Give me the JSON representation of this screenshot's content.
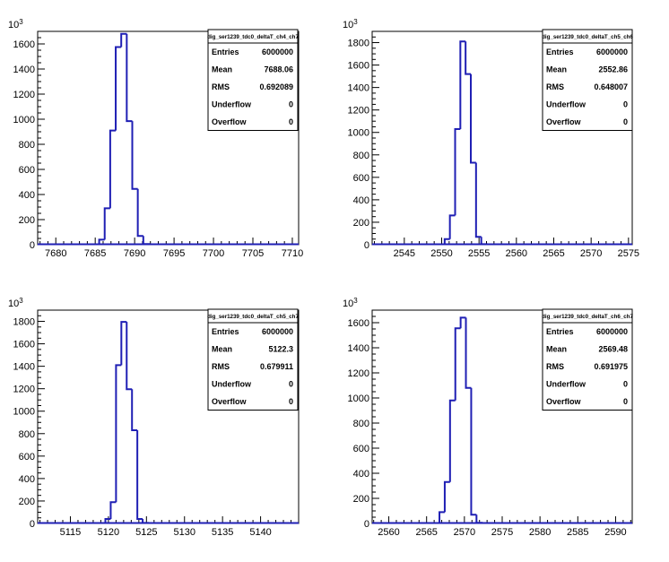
{
  "chart_data": [
    {
      "type": "histogram",
      "stats_title": "dig_ser1239_tdc0_deltaT_ch4_ch7",
      "exponent_label": "10",
      "exponent_power": "3",
      "xlim": [
        7677.7,
        7710.8
      ],
      "ylim": [
        0,
        1700
      ],
      "xticks": [
        7680,
        7685,
        7690,
        7695,
        7700,
        7705,
        7710
      ],
      "yticks": [
        0,
        200,
        400,
        600,
        800,
        1000,
        1200,
        1400,
        1600
      ],
      "bins": [
        {
          "lo": 7685.5,
          "hi": 7686.2,
          "v": 40
        },
        {
          "lo": 7686.2,
          "hi": 7686.9,
          "v": 290
        },
        {
          "lo": 7686.9,
          "hi": 7687.6,
          "v": 910
        },
        {
          "lo": 7687.6,
          "hi": 7688.3,
          "v": 1575
        },
        {
          "lo": 7688.3,
          "hi": 7689.0,
          "v": 1680
        },
        {
          "lo": 7689.0,
          "hi": 7689.7,
          "v": 985
        },
        {
          "lo": 7689.7,
          "hi": 7690.4,
          "v": 445
        },
        {
          "lo": 7690.4,
          "hi": 7691.1,
          "v": 70
        },
        {
          "lo": 7691.1,
          "hi": 7691.8,
          "v": 5
        }
      ],
      "stats": [
        {
          "label": "Entries",
          "value": "6000000"
        },
        {
          "label": "Mean",
          "value": "7688.06"
        },
        {
          "label": "RMS",
          "value": "0.692089"
        },
        {
          "label": "Underflow",
          "value": "0"
        },
        {
          "label": "Overflow",
          "value": "0"
        }
      ]
    },
    {
      "type": "histogram",
      "stats_title": "dig_ser1239_tdc0_deltaT_ch5_ch6",
      "exponent_label": "10",
      "exponent_power": "3",
      "xlim": [
        2540.7,
        2575.5
      ],
      "ylim": [
        0,
        1900
      ],
      "xticks": [
        2545,
        2550,
        2555,
        2560,
        2565,
        2570,
        2575
      ],
      "yticks": [
        0,
        200,
        400,
        600,
        800,
        1000,
        1200,
        1400,
        1600,
        1800
      ],
      "bins": [
        {
          "lo": 2550.4,
          "hi": 2551.1,
          "v": 50
        },
        {
          "lo": 2551.1,
          "hi": 2551.8,
          "v": 260
        },
        {
          "lo": 2551.8,
          "hi": 2552.5,
          "v": 1030
        },
        {
          "lo": 2552.5,
          "hi": 2553.2,
          "v": 1810
        },
        {
          "lo": 2553.2,
          "hi": 2553.9,
          "v": 1520
        },
        {
          "lo": 2553.9,
          "hi": 2554.6,
          "v": 730
        },
        {
          "lo": 2554.6,
          "hi": 2555.3,
          "v": 70
        },
        {
          "lo": 2555.3,
          "hi": 2556.0,
          "v": 5
        }
      ],
      "stats": [
        {
          "label": "Entries",
          "value": "6000000"
        },
        {
          "label": "Mean",
          "value": "2552.86"
        },
        {
          "label": "RMS",
          "value": "0.648007"
        },
        {
          "label": "Underflow",
          "value": "0"
        },
        {
          "label": "Overflow",
          "value": "0"
        }
      ]
    },
    {
      "type": "histogram",
      "stats_title": "dig_ser1239_tdc0_deltaT_ch5_ch7",
      "exponent_label": "10",
      "exponent_power": "3",
      "xlim": [
        5110.7,
        5145.0
      ],
      "ylim": [
        0,
        1900
      ],
      "xticks": [
        5115,
        5120,
        5125,
        5130,
        5135,
        5140
      ],
      "yticks": [
        0,
        200,
        400,
        600,
        800,
        1000,
        1200,
        1400,
        1600,
        1800
      ],
      "bins": [
        {
          "lo": 5119.6,
          "hi": 5120.3,
          "v": 40
        },
        {
          "lo": 5120.3,
          "hi": 5121.0,
          "v": 190
        },
        {
          "lo": 5121.0,
          "hi": 5121.7,
          "v": 1410
        },
        {
          "lo": 5121.7,
          "hi": 5122.4,
          "v": 1795
        },
        {
          "lo": 5122.4,
          "hi": 5123.1,
          "v": 1195
        },
        {
          "lo": 5123.1,
          "hi": 5123.8,
          "v": 830
        },
        {
          "lo": 5123.8,
          "hi": 5124.5,
          "v": 40
        },
        {
          "lo": 5124.5,
          "hi": 5125.2,
          "v": 5
        }
      ],
      "stats": [
        {
          "label": "Entries",
          "value": "6000000"
        },
        {
          "label": "Mean",
          "value": "5122.3"
        },
        {
          "label": "RMS",
          "value": "0.679911"
        },
        {
          "label": "Underflow",
          "value": "0"
        },
        {
          "label": "Overflow",
          "value": "0"
        }
      ]
    },
    {
      "type": "histogram",
      "stats_title": "dig_ser1239_tdc0_deltaT_ch6_ch7",
      "exponent_label": "10",
      "exponent_power": "3",
      "xlim": [
        2557.8,
        2592.2
      ],
      "ylim": [
        0,
        1700
      ],
      "xticks": [
        2560,
        2565,
        2570,
        2575,
        2580,
        2585,
        2590
      ],
      "yticks": [
        0,
        200,
        400,
        600,
        800,
        1000,
        1200,
        1400,
        1600
      ],
      "bins": [
        {
          "lo": 2566.7,
          "hi": 2567.4,
          "v": 90
        },
        {
          "lo": 2567.4,
          "hi": 2568.1,
          "v": 330
        },
        {
          "lo": 2568.1,
          "hi": 2568.8,
          "v": 980
        },
        {
          "lo": 2568.8,
          "hi": 2569.5,
          "v": 1555
        },
        {
          "lo": 2569.5,
          "hi": 2570.2,
          "v": 1640
        },
        {
          "lo": 2570.2,
          "hi": 2570.9,
          "v": 1080
        },
        {
          "lo": 2570.9,
          "hi": 2571.6,
          "v": 70
        },
        {
          "lo": 2571.6,
          "hi": 2572.3,
          "v": 5
        }
      ],
      "stats": [
        {
          "label": "Entries",
          "value": "6000000"
        },
        {
          "label": "Mean",
          "value": "2569.48"
        },
        {
          "label": "RMS",
          "value": "0.691975"
        },
        {
          "label": "Underflow",
          "value": "0"
        },
        {
          "label": "Overflow",
          "value": "0"
        }
      ]
    }
  ],
  "colors": {
    "histogram_line": "#1f1fb4",
    "axis": "#000000",
    "background": "#ffffff"
  }
}
